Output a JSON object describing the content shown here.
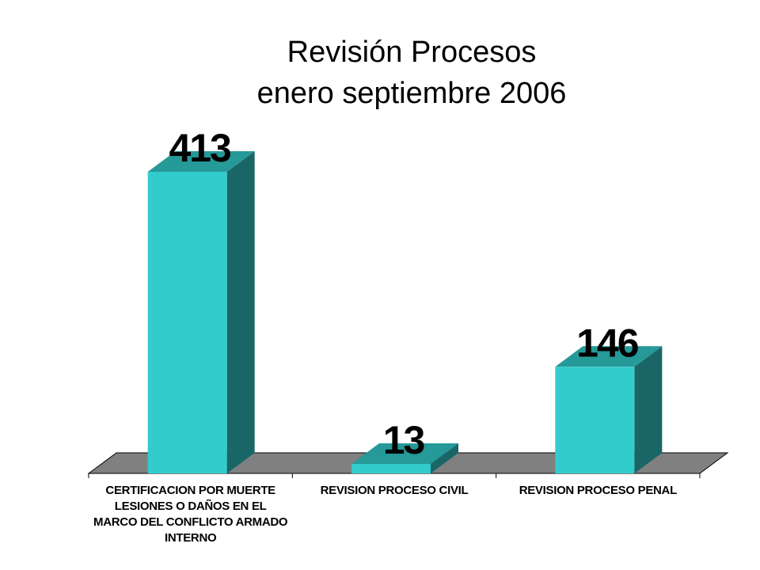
{
  "colors": {
    "bar_front": "#33CCCC",
    "bar_top": "#269999",
    "bar_side": "#1A6666",
    "floor": "#808080"
  },
  "chart_data": {
    "type": "bar",
    "title": "Revisión Procesos",
    "subtitle": "enero septiembre 2006",
    "categories": [
      "CERTIFICACION POR MUERTE LESIONES O DAÑOS EN EL MARCO DEL CONFLICTO ARMADO INTERNO",
      "REVISION PROCESO CIVIL",
      "REVISION PROCESO PENAL"
    ],
    "values": [
      413,
      13,
      146
    ],
    "data_labels": [
      "413",
      "13",
      "146"
    ],
    "xlabel": "",
    "ylabel": "",
    "ylim": [
      0,
      413
    ],
    "grid": false,
    "legend": "none",
    "style": "3d-column"
  }
}
